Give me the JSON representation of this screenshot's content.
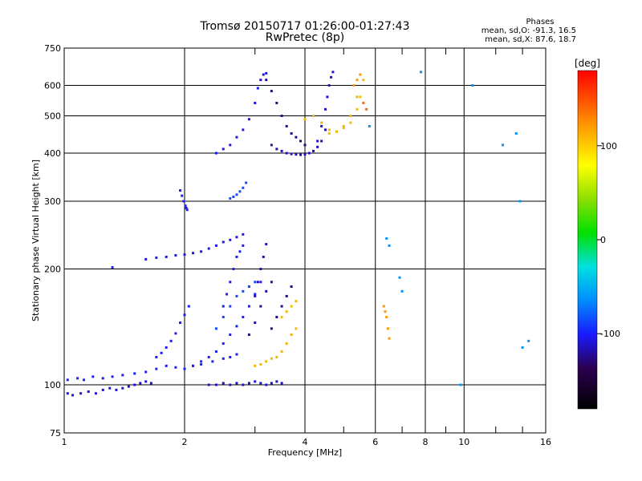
{
  "header": {
    "title": "Tromsø 20150717 01:26:00-01:27:43",
    "subtitle": "RwPretec (8p)",
    "phase_title": "Phases",
    "phase_o": "mean, sd,O: -91.3, 16.5",
    "phase_x": "mean, sd,X:  87.6, 18.7"
  },
  "chart_data": {
    "type": "scatter",
    "title": "Tromsø 20150717 01:26:00-01:27:43",
    "subtitle": "RwPretec (8p)",
    "xlabel": "Frequency [MHz]",
    "ylabel": "Stationary phase Virtual Height [km]",
    "x_scale": "log",
    "y_scale": "log",
    "xlim": [
      1,
      16
    ],
    "ylim": [
      75,
      750
    ],
    "x_ticks": [
      1,
      2,
      4,
      6,
      8,
      10,
      16
    ],
    "x_tick_labels": [
      "1",
      "2",
      "4",
      "6",
      "8",
      "10",
      "16"
    ],
    "y_ticks": [
      75,
      100,
      200,
      300,
      400,
      500,
      600,
      750
    ],
    "y_tick_labels": [
      "75",
      "100",
      "200",
      "300",
      "400",
      "500",
      "600",
      "750"
    ],
    "grid": true,
    "colorbar": {
      "label": "[deg]",
      "range": [
        -180,
        180
      ],
      "ticks": [
        -100,
        0,
        100
      ],
      "tick_labels": [
        "-100",
        "0",
        "100"
      ]
    },
    "traces": [
      {
        "name": "",
        "phase": -110,
        "x": [
          1.02,
          1.05,
          1.1,
          1.15,
          1.2,
          1.25,
          1.3,
          1.35,
          1.4,
          1.45,
          1.5,
          1.55,
          1.6,
          1.65
        ],
        "y": [
          95,
          94,
          95,
          96,
          95,
          97,
          98,
          97,
          98,
          99,
          100,
          101,
          102,
          101
        ]
      },
      {
        "name": "",
        "phase": -100,
        "x": [
          1.02,
          1.08,
          1.12,
          1.18,
          1.25,
          1.32,
          1.4,
          1.5,
          1.6,
          1.7,
          1.8,
          1.9,
          2.0,
          2.1,
          2.2,
          2.35,
          2.5,
          2.6,
          2.7
        ],
        "y": [
          103,
          104,
          103,
          105,
          104,
          105,
          106,
          107,
          108,
          110,
          112,
          111,
          110,
          112,
          113,
          115,
          117,
          118,
          120
        ]
      },
      {
        "name": "",
        "phase": -100,
        "x": [
          1.7,
          1.75,
          1.8,
          1.85,
          1.9,
          1.95,
          2.0,
          2.05
        ],
        "y": [
          118,
          121,
          125,
          130,
          136,
          145,
          152,
          160
        ]
      },
      {
        "name": "",
        "phase": -100,
        "x": [
          1.32
        ],
        "y": [
          202
        ]
      },
      {
        "name": "",
        "phase": -105,
        "x": [
          1.6,
          1.7,
          1.8,
          1.9,
          2.0,
          2.1,
          2.2,
          2.3,
          2.4,
          2.5,
          2.6,
          2.7,
          2.8
        ],
        "y": [
          212,
          214,
          215,
          217,
          218,
          220,
          222,
          226,
          230,
          235,
          238,
          242,
          246
        ]
      },
      {
        "name": "",
        "phase": -100,
        "x": [
          1.95,
          1.97,
          1.99,
          2.01,
          2.02,
          2.03
        ],
        "y": [
          320,
          310,
          300,
          292,
          288,
          285
        ]
      },
      {
        "name": "",
        "phase": -85,
        "x": [
          2.6,
          2.65,
          2.7,
          2.75,
          2.8,
          2.85
        ],
        "y": [
          305,
          308,
          312,
          318,
          325,
          335
        ]
      },
      {
        "name": "",
        "phase": -100,
        "x": [
          2.1,
          2.2,
          2.3,
          2.4,
          2.5,
          2.6,
          2.7,
          2.8,
          2.9,
          3.0,
          3.1
        ],
        "y": [
          112,
          115,
          118,
          122,
          128,
          135,
          142,
          150,
          160,
          172,
          185
        ]
      },
      {
        "name": "",
        "phase": -100,
        "x": [
          2.5,
          2.55,
          2.6,
          2.65,
          2.7,
          2.75,
          2.8
        ],
        "y": [
          160,
          172,
          185,
          200,
          215,
          222,
          230
        ]
      },
      {
        "name": "",
        "phase": -85,
        "x": [
          2.4,
          2.5,
          2.6,
          2.7,
          2.8,
          2.9,
          3.0
        ],
        "y": [
          140,
          150,
          160,
          170,
          175,
          180,
          185
        ]
      },
      {
        "name": "",
        "phase": -120,
        "x": [
          2.9,
          3.0,
          3.1,
          3.2,
          3.3
        ],
        "y": [
          135,
          145,
          160,
          175,
          185
        ]
      },
      {
        "name": "",
        "phase": -115,
        "x": [
          3.0,
          3.05,
          3.1,
          3.15,
          3.2
        ],
        "y": [
          170,
          185,
          200,
          215,
          232
        ]
      },
      {
        "name": "",
        "phase": -125,
        "x": [
          3.3,
          3.4,
          3.5,
          3.6,
          3.7
        ],
        "y": [
          140,
          150,
          160,
          170,
          180
        ]
      },
      {
        "name": "",
        "phase": 105,
        "x": [
          3.0,
          3.1,
          3.2,
          3.3,
          3.4,
          3.5,
          3.6,
          3.7,
          3.8
        ],
        "y": [
          112,
          113,
          115,
          117,
          118,
          122,
          128,
          135,
          140
        ]
      },
      {
        "name": "",
        "phase": 100,
        "x": [
          3.5,
          3.6,
          3.7,
          3.8
        ],
        "y": [
          150,
          155,
          160,
          165
        ]
      },
      {
        "name": "",
        "phase": -110,
        "x": [
          2.3,
          2.4,
          2.5,
          2.6,
          2.7,
          2.8,
          2.9,
          3.0,
          3.1,
          3.2,
          3.3,
          3.4,
          3.5
        ],
        "y": [
          100,
          100,
          101,
          100,
          101,
          100,
          101,
          102,
          101,
          100,
          101,
          102,
          101
        ]
      },
      {
        "name": "",
        "phase": -105,
        "x": [
          2.4,
          2.5,
          2.6,
          2.7,
          2.8,
          2.9,
          3.0,
          3.05,
          3.1,
          3.15,
          3.2
        ],
        "y": [
          400,
          410,
          420,
          440,
          460,
          490,
          540,
          590,
          620,
          640,
          645
        ]
      },
      {
        "name": "",
        "phase": -125,
        "x": [
          3.2,
          3.3,
          3.4,
          3.5,
          3.6,
          3.7,
          3.8,
          3.9,
          4.0
        ],
        "y": [
          620,
          580,
          540,
          500,
          470,
          450,
          440,
          430,
          420
        ]
      },
      {
        "name": "",
        "phase": -115,
        "x": [
          3.3,
          3.4,
          3.5,
          3.6,
          3.7,
          3.8,
          3.9,
          4.0,
          4.1,
          4.2,
          4.3,
          4.4,
          4.5
        ],
        "y": [
          420,
          410,
          405,
          400,
          398,
          397,
          396,
          397,
          400,
          405,
          415,
          430,
          460
        ]
      },
      {
        "name": "",
        "phase": -110,
        "x": [
          4.3,
          4.4,
          4.5,
          4.55,
          4.6,
          4.65,
          4.7
        ],
        "y": [
          430,
          470,
          520,
          560,
          600,
          630,
          650
        ]
      },
      {
        "name": "",
        "phase": 105,
        "x": [
          4.0,
          4.2,
          4.4,
          4.6,
          4.8,
          5.0,
          5.2,
          5.4
        ],
        "y": [
          490,
          500,
          480,
          460,
          455,
          470,
          500,
          560
        ]
      },
      {
        "name": "",
        "phase": 100,
        "x": [
          4.6,
          4.8,
          5.0,
          5.2,
          5.4,
          5.5,
          5.6
        ],
        "y": [
          450,
          455,
          465,
          480,
          520,
          560,
          620
        ]
      },
      {
        "name": "",
        "phase": 120,
        "x": [
          5.3,
          5.4,
          5.5
        ],
        "y": [
          600,
          620,
          640
        ]
      },
      {
        "name": "",
        "phase": 140,
        "x": [
          5.6,
          5.7
        ],
        "y": [
          540,
          520
        ]
      },
      {
        "name": "",
        "phase": 120,
        "x": [
          6.3,
          6.35,
          6.4,
          6.45,
          6.5
        ],
        "y": [
          160,
          155,
          150,
          140,
          132
        ]
      },
      {
        "name": "",
        "phase": -60,
        "x": [
          7.8,
          5.8,
          6.4,
          6.5,
          6.9,
          7.0,
          10.5,
          12.5,
          13.5,
          13.8,
          14.0,
          14.5,
          9.8
        ],
        "y": [
          650,
          470,
          240,
          230,
          190,
          175,
          600,
          420,
          450,
          300,
          125,
          130,
          100
        ]
      }
    ]
  }
}
